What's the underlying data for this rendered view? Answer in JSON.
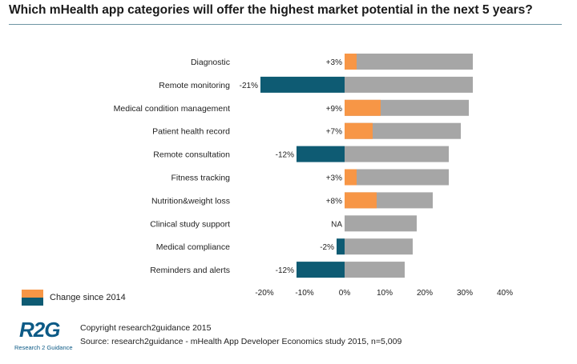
{
  "title": "Which mHealth app categories will offer the highest market potential in the next 5 years?",
  "legend": {
    "label": "Change since 2014"
  },
  "logo": {
    "text": "R2G",
    "subtext": "Research 2 Guidance"
  },
  "footer": {
    "copyright": "Copyright research2guidance 2015",
    "source": "Source: research2guidance - mHealth App Developer Economics study 2015, n=5,009"
  },
  "colors": {
    "bar": "#a6a6a6",
    "positive_change": "#f79646",
    "negative_change": "#0e5b73"
  },
  "chart_data": {
    "type": "bar",
    "orientation": "horizontal",
    "categories": [
      "Diagnostic",
      "Remote monitoring",
      "Medical condition management",
      "Patient health record",
      "Remote consultation",
      "Fitness tracking",
      "Nutrition&weight loss",
      "Clinical study support",
      "Medical compliance",
      "Reminders and alerts"
    ],
    "series": [
      {
        "values": [
          32,
          32,
          31,
          29,
          26,
          26,
          22,
          18,
          17,
          15
        ]
      },
      {
        "name": "Change since 2014",
        "values": [
          3,
          -21,
          9,
          7,
          -12,
          3,
          8,
          null,
          -2,
          -12
        ]
      }
    ],
    "change_labels": [
      "+3%",
      "-21%",
      "+9%",
      "+7%",
      "-12%",
      "+3%",
      "+8%",
      "NA",
      "-2%",
      "-12%"
    ],
    "xticks": [
      "-20%",
      "-10%",
      "0%",
      "10%",
      "20%",
      "30%",
      "40%"
    ],
    "xlim": [
      -20,
      40
    ],
    "grid": false,
    "legend_position": "bottom-left"
  }
}
